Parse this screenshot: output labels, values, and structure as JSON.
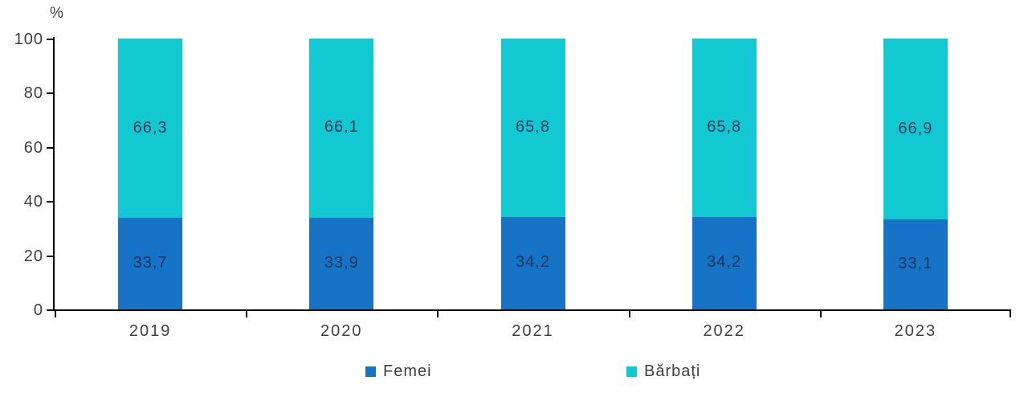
{
  "chart_data": {
    "type": "bar",
    "stacked": true,
    "title": "",
    "unit_label": "%",
    "categories": [
      "2019",
      "2020",
      "2021",
      "2022",
      "2023"
    ],
    "series": [
      {
        "name": "Femei",
        "color": "#1673C6",
        "values": [
          33.7,
          33.9,
          34.2,
          34.2,
          33.1
        ],
        "labels": [
          "33,7",
          "33,9",
          "34,2",
          "34,2",
          "33,1"
        ]
      },
      {
        "name": "Bărbați",
        "color": "#12C9D2",
        "values": [
          66.3,
          66.1,
          65.8,
          65.8,
          66.9
        ],
        "labels": [
          "66,3",
          "66,1",
          "65,8",
          "65,8",
          "66,9"
        ]
      }
    ],
    "y_axis": {
      "min": 0,
      "max": 100,
      "tick_step": 20,
      "ticks": [
        "0",
        "20",
        "40",
        "60",
        "80",
        "100"
      ]
    },
    "legend": [
      "Femei",
      "Bărbați"
    ],
    "grid": false,
    "legend_position": "bottom",
    "colors": {
      "segment_label_text": "#17375E",
      "axis_text": "#3f3f3f",
      "axis_line": "#000000",
      "background": "#FFFFFF"
    }
  }
}
